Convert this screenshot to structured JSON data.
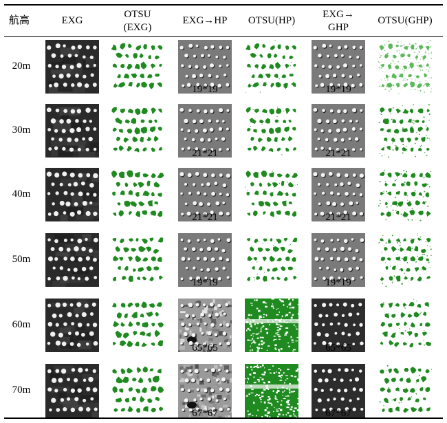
{
  "table": {
    "headers": [
      {
        "line1": "航高",
        "line2": ""
      },
      {
        "line1": "EXG",
        "line2": ""
      },
      {
        "line1": "OTSU",
        "line2": "(EXG)"
      },
      {
        "line1": "EXG→HP",
        "line2": ""
      },
      {
        "line1": "OTSU(HP)",
        "line2": ""
      },
      {
        "line1": "EXG→",
        "line2": "GHP"
      },
      {
        "line1": "OTSU(GHP)",
        "line2": ""
      }
    ],
    "rows": [
      {
        "height": "20m",
        "hp_kernel": "19*19",
        "ghp_kernel": "19*19"
      },
      {
        "height": "30m",
        "hp_kernel": "21*21",
        "ghp_kernel": "21*21"
      },
      {
        "height": "40m",
        "hp_kernel": "21*21",
        "ghp_kernel": "21*21"
      },
      {
        "height": "50m",
        "hp_kernel": "19*19",
        "ghp_kernel": "19*19"
      },
      {
        "height": "60m",
        "hp_kernel": "65*65",
        "ghp_kernel": "65*65"
      },
      {
        "height": "70m",
        "hp_kernel": "67*67",
        "ghp_kernel": "67*67"
      }
    ],
    "image_types": [
      "exg-grayscale",
      "otsu-exg-binary",
      "exg-hp-filtered",
      "otsu-hp-binary",
      "exg-ghp-filtered",
      "otsu-ghp-binary"
    ],
    "colors": {
      "plant_green": "#1f8a1f",
      "rule": "#000000"
    }
  }
}
